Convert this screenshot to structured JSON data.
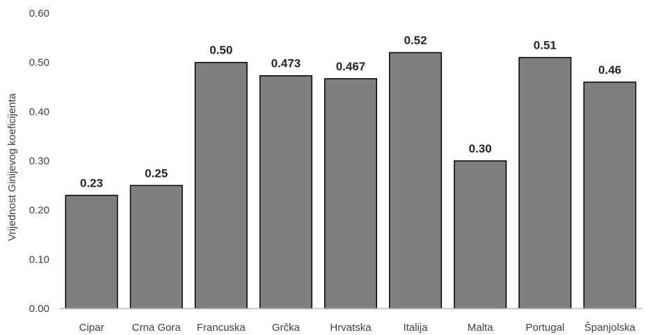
{
  "chart_data": {
    "type": "bar",
    "title": "",
    "xlabel": "",
    "ylabel": "Vrijednost Ginijevog koeficijenta",
    "ylim": [
      0,
      0.6
    ],
    "yticks": [
      "0.00",
      "0.10",
      "0.20",
      "0.30",
      "0.40",
      "0.50",
      "0.60"
    ],
    "grid": false,
    "categories": [
      "Cipar",
      "Crna Gora",
      "Francuska",
      "Grčka",
      "Hrvatska",
      "Italija",
      "Malta",
      "Portugal",
      "Španjolska"
    ],
    "values": [
      0.23,
      0.25,
      0.5,
      0.473,
      0.467,
      0.52,
      0.3,
      0.51,
      0.46
    ],
    "value_labels": [
      "0.23",
      "0.25",
      "0.50",
      "0.473",
      "0.467",
      "0.52",
      "0.30",
      "0.51",
      "0.46"
    ],
    "bar_color": "#7f7f7f"
  }
}
